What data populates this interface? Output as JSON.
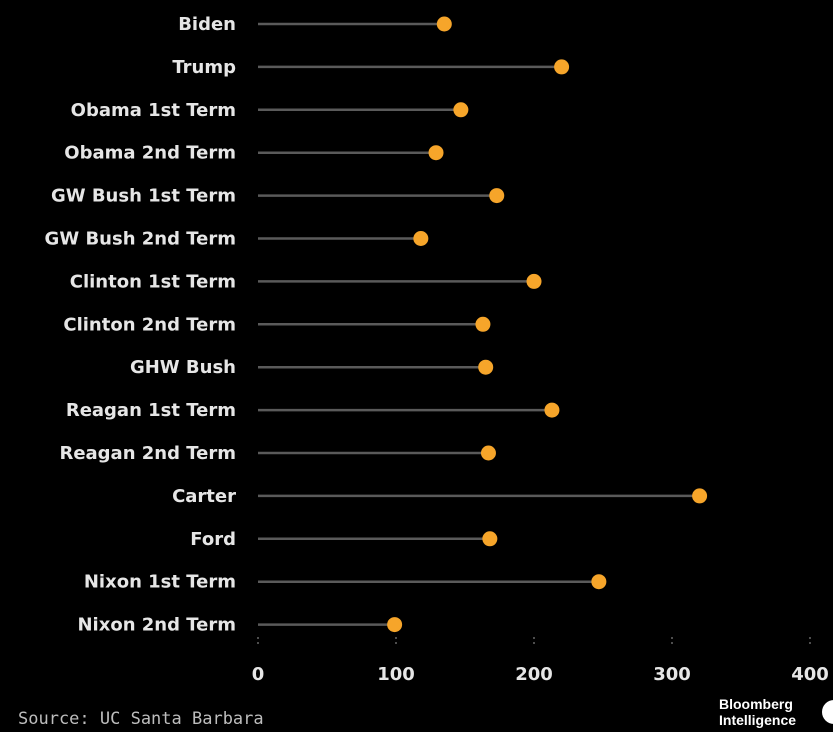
{
  "chart_data": {
    "type": "lollipop",
    "orientation": "horizontal",
    "categories": [
      "Biden",
      "Trump",
      "Obama 1st Term",
      "Obama 2nd Term",
      "GW Bush 1st Term",
      "GW Bush 2nd Term",
      "Clinton 1st Term",
      "Clinton 2nd Term",
      "GHW Bush",
      "Reagan 1st Term",
      "Reagan 2nd Term",
      "Carter",
      "Ford",
      "Nixon 1st Term",
      "Nixon 2nd Term"
    ],
    "values": [
      135,
      220,
      147,
      129,
      173,
      118,
      200,
      163,
      165,
      213,
      167,
      320,
      168,
      247,
      99
    ],
    "xlim": [
      0,
      400
    ],
    "xticks": [
      0,
      100,
      200,
      300,
      400
    ],
    "xtick_labels": [
      "0",
      "100",
      "200",
      "300",
      "400"
    ],
    "marker_color": "#f6a52a",
    "stem_color": "#5a5a5a",
    "background": "#000000",
    "grid": false
  },
  "footer": {
    "source": "Source: UC Santa Barbara",
    "brand_line1": "Bloomberg",
    "brand_line2": "Intelligence"
  }
}
